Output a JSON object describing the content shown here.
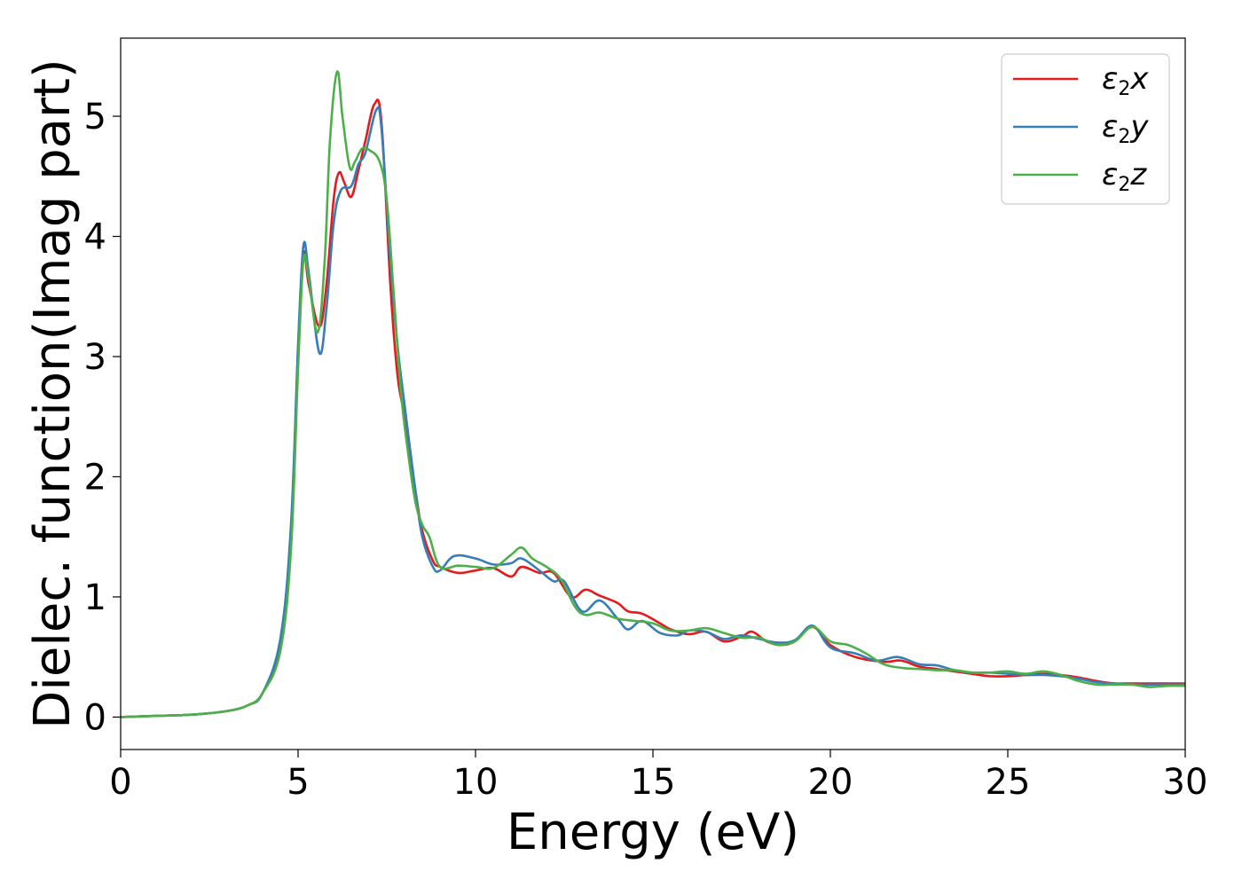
{
  "chart_data": {
    "type": "line",
    "title": "",
    "xlabel": "Energy (eV)",
    "ylabel": "Dielec. function(Imag part)",
    "xlim": [
      0,
      30
    ],
    "ylim": [
      -0.27,
      5.65
    ],
    "xticks": [
      0,
      5,
      10,
      15,
      20,
      25,
      30
    ],
    "yticks": [
      0,
      1,
      2,
      3,
      4,
      5
    ],
    "grid": false,
    "legend_position": "top-right",
    "series": [
      {
        "name": "ε2x",
        "legend_base": "ε",
        "legend_sub": "2",
        "legend_var": "x",
        "color": "#e41a1c",
        "points": [
          [
            0,
            0
          ],
          [
            1,
            0.01
          ],
          [
            2,
            0.02
          ],
          [
            3,
            0.05
          ],
          [
            3.6,
            0.1
          ],
          [
            4,
            0.2
          ],
          [
            4.5,
            0.6
          ],
          [
            4.8,
            1.5
          ],
          [
            5.0,
            3.0
          ],
          [
            5.15,
            3.85
          ],
          [
            5.3,
            3.6
          ],
          [
            5.6,
            3.25
          ],
          [
            5.8,
            3.6
          ],
          [
            6.0,
            4.3
          ],
          [
            6.15,
            4.53
          ],
          [
            6.3,
            4.45
          ],
          [
            6.5,
            4.33
          ],
          [
            6.7,
            4.55
          ],
          [
            6.9,
            4.8
          ],
          [
            7.15,
            5.1
          ],
          [
            7.35,
            4.95
          ],
          [
            7.6,
            3.6
          ],
          [
            7.8,
            2.85
          ],
          [
            8.0,
            2.5
          ],
          [
            8.3,
            1.9
          ],
          [
            8.5,
            1.55
          ],
          [
            8.8,
            1.3
          ],
          [
            9.0,
            1.25
          ],
          [
            9.5,
            1.2
          ],
          [
            10,
            1.22
          ],
          [
            10.5,
            1.24
          ],
          [
            11,
            1.17
          ],
          [
            11.3,
            1.25
          ],
          [
            11.8,
            1.2
          ],
          [
            12.2,
            1.2
          ],
          [
            12.7,
            1.0
          ],
          [
            13.1,
            1.06
          ],
          [
            13.5,
            1.01
          ],
          [
            14,
            0.95
          ],
          [
            14.3,
            0.88
          ],
          [
            14.7,
            0.86
          ],
          [
            15.2,
            0.78
          ],
          [
            15.5,
            0.73
          ],
          [
            16,
            0.69
          ],
          [
            16.5,
            0.71
          ],
          [
            17,
            0.63
          ],
          [
            17.5,
            0.67
          ],
          [
            17.8,
            0.71
          ],
          [
            18.2,
            0.63
          ],
          [
            18.6,
            0.6
          ],
          [
            19,
            0.63
          ],
          [
            19.5,
            0.75
          ],
          [
            20,
            0.6
          ],
          [
            20.7,
            0.5
          ],
          [
            21.5,
            0.46
          ],
          [
            22,
            0.47
          ],
          [
            22.5,
            0.42
          ],
          [
            23,
            0.4
          ],
          [
            23.5,
            0.38
          ],
          [
            24,
            0.36
          ],
          [
            24.5,
            0.34
          ],
          [
            25,
            0.34
          ],
          [
            25.5,
            0.35
          ],
          [
            26,
            0.36
          ],
          [
            26.5,
            0.35
          ],
          [
            27,
            0.33
          ],
          [
            27.5,
            0.3
          ],
          [
            28,
            0.28
          ],
          [
            28.5,
            0.28
          ],
          [
            29,
            0.28
          ],
          [
            29.5,
            0.28
          ],
          [
            30,
            0.28
          ]
        ]
      },
      {
        "name": "ε2y",
        "legend_base": "ε",
        "legend_sub": "2",
        "legend_var": "y",
        "color": "#377eb8",
        "points": [
          [
            0,
            0
          ],
          [
            1,
            0.01
          ],
          [
            2,
            0.02
          ],
          [
            3,
            0.05
          ],
          [
            3.6,
            0.1
          ],
          [
            4,
            0.2
          ],
          [
            4.5,
            0.65
          ],
          [
            4.8,
            1.6
          ],
          [
            5.0,
            3.1
          ],
          [
            5.15,
            3.92
          ],
          [
            5.3,
            3.7
          ],
          [
            5.6,
            3.03
          ],
          [
            5.8,
            3.4
          ],
          [
            6.0,
            4.1
          ],
          [
            6.2,
            4.38
          ],
          [
            6.5,
            4.42
          ],
          [
            6.7,
            4.6
          ],
          [
            6.9,
            4.7
          ],
          [
            7.2,
            5.05
          ],
          [
            7.35,
            4.9
          ],
          [
            7.6,
            3.8
          ],
          [
            7.8,
            3.1
          ],
          [
            8.0,
            2.6
          ],
          [
            8.3,
            1.9
          ],
          [
            8.5,
            1.5
          ],
          [
            8.8,
            1.25
          ],
          [
            9.0,
            1.22
          ],
          [
            9.4,
            1.34
          ],
          [
            10,
            1.32
          ],
          [
            10.5,
            1.27
          ],
          [
            11,
            1.28
          ],
          [
            11.3,
            1.32
          ],
          [
            11.8,
            1.22
          ],
          [
            12.2,
            1.13
          ],
          [
            12.5,
            1.13
          ],
          [
            13,
            0.88
          ],
          [
            13.5,
            0.97
          ],
          [
            14,
            0.82
          ],
          [
            14.3,
            0.73
          ],
          [
            14.7,
            0.8
          ],
          [
            15.2,
            0.7
          ],
          [
            15.7,
            0.68
          ],
          [
            16,
            0.72
          ],
          [
            16.5,
            0.71
          ],
          [
            17,
            0.65
          ],
          [
            17.5,
            0.68
          ],
          [
            18,
            0.65
          ],
          [
            18.5,
            0.62
          ],
          [
            19,
            0.64
          ],
          [
            19.5,
            0.76
          ],
          [
            20,
            0.58
          ],
          [
            20.7,
            0.53
          ],
          [
            21.3,
            0.47
          ],
          [
            21.9,
            0.5
          ],
          [
            22.5,
            0.44
          ],
          [
            23,
            0.43
          ],
          [
            23.5,
            0.39
          ],
          [
            24,
            0.37
          ],
          [
            24.5,
            0.37
          ],
          [
            25,
            0.36
          ],
          [
            25.5,
            0.35
          ],
          [
            26,
            0.35
          ],
          [
            26.5,
            0.34
          ],
          [
            27,
            0.32
          ],
          [
            27.5,
            0.29
          ],
          [
            28,
            0.28
          ],
          [
            28.5,
            0.27
          ],
          [
            29,
            0.27
          ],
          [
            29.5,
            0.27
          ],
          [
            30,
            0.27
          ]
        ]
      },
      {
        "name": "ε2z",
        "legend_base": "ε",
        "legend_sub": "2",
        "legend_var": "z",
        "color": "#4daf4a",
        "points": [
          [
            0,
            0
          ],
          [
            1,
            0.01
          ],
          [
            2,
            0.02
          ],
          [
            3,
            0.05
          ],
          [
            3.6,
            0.1
          ],
          [
            4,
            0.2
          ],
          [
            4.5,
            0.55
          ],
          [
            4.8,
            1.4
          ],
          [
            5.0,
            2.9
          ],
          [
            5.15,
            3.8
          ],
          [
            5.3,
            3.65
          ],
          [
            5.55,
            3.2
          ],
          [
            5.75,
            3.8
          ],
          [
            5.9,
            4.8
          ],
          [
            6.1,
            5.37
          ],
          [
            6.25,
            5.0
          ],
          [
            6.45,
            4.58
          ],
          [
            6.6,
            4.62
          ],
          [
            6.8,
            4.73
          ],
          [
            7.0,
            4.72
          ],
          [
            7.3,
            4.62
          ],
          [
            7.5,
            4.3
          ],
          [
            7.7,
            3.5
          ],
          [
            7.9,
            2.7
          ],
          [
            8.1,
            2.2
          ],
          [
            8.3,
            1.8
          ],
          [
            8.5,
            1.6
          ],
          [
            8.7,
            1.5
          ],
          [
            9.0,
            1.25
          ],
          [
            9.5,
            1.26
          ],
          [
            10,
            1.25
          ],
          [
            10.5,
            1.24
          ],
          [
            11,
            1.35
          ],
          [
            11.3,
            1.41
          ],
          [
            11.6,
            1.32
          ],
          [
            12,
            1.25
          ],
          [
            12.4,
            1.15
          ],
          [
            12.8,
            0.92
          ],
          [
            13.1,
            0.85
          ],
          [
            13.5,
            0.87
          ],
          [
            14,
            0.82
          ],
          [
            14.5,
            0.8
          ],
          [
            15,
            0.78
          ],
          [
            15.5,
            0.72
          ],
          [
            16,
            0.72
          ],
          [
            16.5,
            0.74
          ],
          [
            17,
            0.7
          ],
          [
            17.5,
            0.66
          ],
          [
            18,
            0.66
          ],
          [
            18.5,
            0.6
          ],
          [
            19,
            0.63
          ],
          [
            19.5,
            0.75
          ],
          [
            20,
            0.63
          ],
          [
            20.5,
            0.6
          ],
          [
            21,
            0.53
          ],
          [
            21.5,
            0.44
          ],
          [
            22,
            0.41
          ],
          [
            22.5,
            0.4
          ],
          [
            23,
            0.39
          ],
          [
            23.5,
            0.39
          ],
          [
            24,
            0.37
          ],
          [
            24.5,
            0.37
          ],
          [
            25,
            0.38
          ],
          [
            25.5,
            0.36
          ],
          [
            26,
            0.38
          ],
          [
            26.5,
            0.35
          ],
          [
            27,
            0.3
          ],
          [
            27.5,
            0.27
          ],
          [
            28,
            0.27
          ],
          [
            28.5,
            0.27
          ],
          [
            29,
            0.25
          ],
          [
            29.5,
            0.26
          ],
          [
            30,
            0.26
          ]
        ]
      }
    ]
  }
}
